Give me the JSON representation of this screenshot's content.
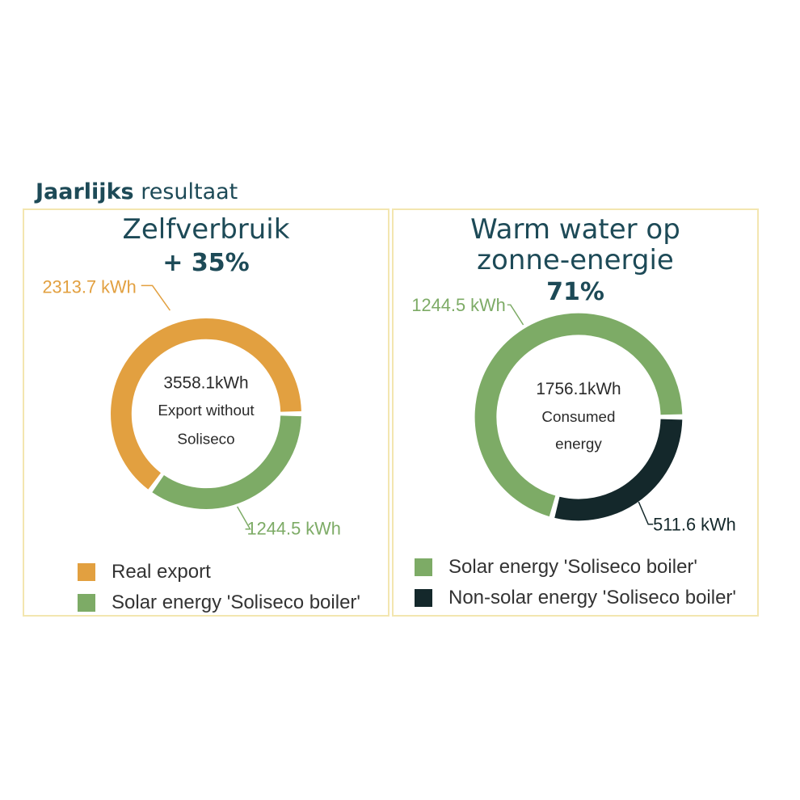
{
  "heading": {
    "bold": "Jaarlijks",
    "rest": "resultaat"
  },
  "colors": {
    "orange": "#e2a040",
    "green": "#7dab66",
    "dark": "#14282b",
    "border": "#f3e6b0",
    "title": "#1d4a57"
  },
  "panels": [
    {
      "title_lines": [
        "Zelfverbruik"
      ],
      "percent": "+ 35%",
      "center": [
        "3558.1kWh",
        "Export without",
        "Soliseco"
      ],
      "legend": [
        {
          "label": "Real export",
          "color": "#e2a040"
        },
        {
          "label": "Solar energy 'Soliseco boiler'",
          "color": "#7dab66"
        }
      ]
    },
    {
      "title_lines": [
        "Warm water op",
        "zonne-energie"
      ],
      "percent": "71%",
      "center": [
        "1756.1kWh",
        "Consumed",
        "energy"
      ],
      "legend": [
        {
          "label": "Solar energy 'Soliseco boiler'",
          "color": "#7dab66"
        },
        {
          "label": "Non-solar energy 'Soliseco boiler'",
          "color": "#14282b"
        }
      ]
    }
  ],
  "chart_data": [
    {
      "type": "pie",
      "categories": [
        "Real export",
        "Solar energy 'Soliseco boiler'"
      ],
      "values": [
        2313.7,
        1244.5
      ],
      "value_labels": [
        "2313.7 kWh",
        "1244.5 kWh"
      ],
      "total_label": "3558.1kWh",
      "colors": [
        "#e2a040",
        "#7dab66"
      ],
      "title": "Zelfverbruik",
      "legend": "bottom"
    },
    {
      "type": "pie",
      "categories": [
        "Solar energy 'Soliseco boiler'",
        "Non-solar energy 'Soliseco boiler'"
      ],
      "values": [
        1244.5,
        511.6
      ],
      "value_labels": [
        "1244.5 kWh",
        "511.6 kWh"
      ],
      "total_label": "1756.1kWh",
      "colors": [
        "#7dab66",
        "#14282b"
      ],
      "title": "Warm water op zonne-energie",
      "legend": "bottom"
    }
  ]
}
